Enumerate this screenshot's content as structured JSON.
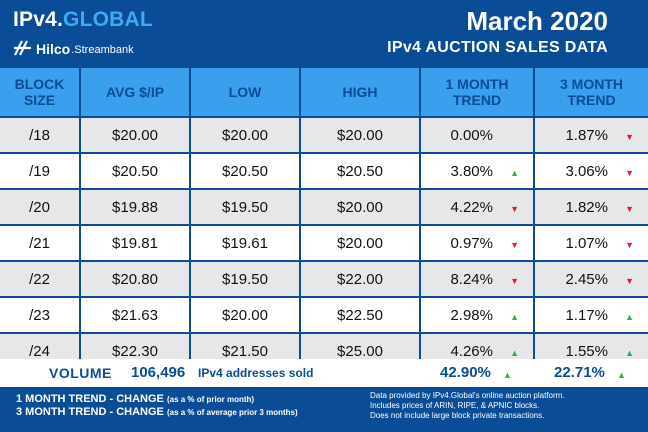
{
  "brand": {
    "part1": "IPv4.",
    "part2": "GLOBAL",
    "sub_bold": "Hilco",
    "sub_regular": ".Streambank"
  },
  "title": "March 2020",
  "subtitle": "IPv4 AUCTION SALES DATA",
  "columns": [
    "BLOCK SIZE",
    "AVG $/IP",
    "LOW",
    "HIGH",
    "1 MONTH TREND",
    "3 MONTH TREND"
  ],
  "rows": [
    {
      "block": "/18",
      "avg": "$20.00",
      "low": "$20.00",
      "high": "$20.00",
      "t1": "0.00%",
      "t1_dir": "",
      "t3": "1.87%",
      "t3_dir": "down"
    },
    {
      "block": "/19",
      "avg": "$20.50",
      "low": "$20.50",
      "high": "$20.50",
      "t1": "3.80%",
      "t1_dir": "up",
      "t3": "3.06%",
      "t3_dir": "down"
    },
    {
      "block": "/20",
      "avg": "$19.88",
      "low": "$19.50",
      "high": "$20.00",
      "t1": "4.22%",
      "t1_dir": "down",
      "t3": "1.82%",
      "t3_dir": "down"
    },
    {
      "block": "/21",
      "avg": "$19.81",
      "low": "$19.61",
      "high": "$20.00",
      "t1": "0.97%",
      "t1_dir": "down",
      "t3": "1.07%",
      "t3_dir": "down"
    },
    {
      "block": "/22",
      "avg": "$20.80",
      "low": "$19.50",
      "high": "$22.00",
      "t1": "8.24%",
      "t1_dir": "down",
      "t3": "2.45%",
      "t3_dir": "down"
    },
    {
      "block": "/23",
      "avg": "$21.63",
      "low": "$20.00",
      "high": "$22.50",
      "t1": "2.98%",
      "t1_dir": "up",
      "t3": "1.17%",
      "t3_dir": "up"
    },
    {
      "block": "/24",
      "avg": "$22.30",
      "low": "$21.50",
      "high": "$25.00",
      "t1": "4.26%",
      "t1_dir": "up",
      "t3": "1.55%",
      "t3_dir": "up"
    }
  ],
  "volume": {
    "label": "VOLUME",
    "count": "106,496",
    "text": "IPv4 addresses sold",
    "t1": "42.90%",
    "t1_dir": "up",
    "t3": "22.71%",
    "t3_dir": "up"
  },
  "notes": {
    "line1_main": "1 MONTH TREND - CHANGE",
    "line1_paren": "(as a % of prior month)",
    "line2_main": "3 MONTH TREND - CHANGE",
    "line2_paren": "(as a % of average prior 3 months)"
  },
  "credits": [
    "Data provided by IPv4.Global's online auction platform.",
    "Includes prices of ARIN, RIPE, & APNIC blocks.",
    "Does not include large block private transactions."
  ],
  "colors": {
    "navy": "#0a4d96",
    "header_blue": "#3aa0ee",
    "accent": "#3fa9f5",
    "up": "#2db34a",
    "down": "#e0202e",
    "row_gray": "#e6e7e8"
  },
  "icons": {
    "up": "triangle-up-icon",
    "down": "triangle-down-icon",
    "logo": "hilco-logo-icon"
  }
}
